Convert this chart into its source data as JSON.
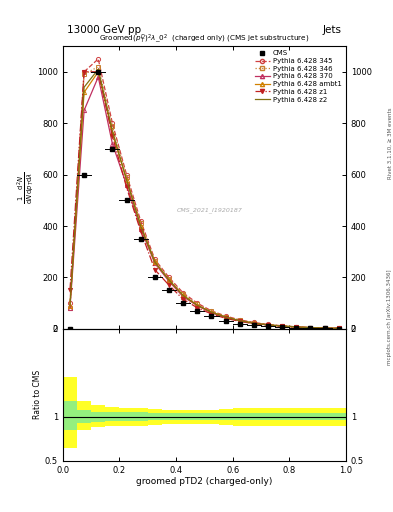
{
  "title_left": "13000 GeV pp",
  "title_right": "Jets",
  "plot_title": "Groomed$(p_T^D)^2\\lambda_0^2$  (charged only) (CMS jet substructure)",
  "xlabel": "groomed pTD2 (charged-only)",
  "ylabel_top": "1 / mathrmN d^2N / mathrmd p_T mathrmd lambda",
  "right_label_top": "Rivet 3.1.10, ≥ 3M events",
  "right_label_bottom": "mcplots.cern.ch [arXiv:1306.3436]",
  "watermark": "CMS_2021_I1920187",
  "x_bins": [
    0.0,
    0.05,
    0.1,
    0.15,
    0.2,
    0.25,
    0.3,
    0.35,
    0.4,
    0.45,
    0.5,
    0.55,
    0.6,
    0.65,
    0.7,
    0.75,
    0.8,
    0.85,
    0.9,
    0.95,
    1.0
  ],
  "cms_data": [
    0,
    600,
    1000,
    700,
    500,
    350,
    200,
    150,
    100,
    70,
    50,
    30,
    20,
    15,
    10,
    7,
    5,
    3,
    2,
    1
  ],
  "py345_data": [
    100,
    1000,
    1050,
    800,
    600,
    420,
    270,
    200,
    140,
    100,
    70,
    50,
    35,
    25,
    17,
    12,
    8,
    5,
    3,
    2
  ],
  "py346_data": [
    80,
    990,
    1020,
    790,
    590,
    410,
    265,
    195,
    135,
    95,
    68,
    48,
    33,
    23,
    16,
    11,
    7.5,
    4.8,
    3,
    1.9
  ],
  "py370_data": [
    80,
    850,
    980,
    720,
    560,
    390,
    255,
    185,
    125,
    90,
    62,
    44,
    31,
    21,
    15,
    10,
    7,
    4.5,
    2.8,
    1.8
  ],
  "pyambt1_data": [
    90,
    920,
    1000,
    760,
    580,
    400,
    260,
    190,
    130,
    92,
    65,
    46,
    32,
    22,
    15.5,
    11,
    7.5,
    4.8,
    3,
    2
  ],
  "pyz1_data": [
    150,
    1000,
    1000,
    750,
    550,
    380,
    230,
    170,
    115,
    82,
    58,
    41,
    29,
    20,
    14,
    9.5,
    6.5,
    4.2,
    2.6,
    1.7
  ],
  "pyz2_data": [
    90,
    940,
    1010,
    770,
    580,
    400,
    260,
    190,
    130,
    92,
    65,
    46,
    32,
    22,
    15.5,
    11,
    7.5,
    4.8,
    3,
    2
  ],
  "ratio_yellow_upper": [
    1.45,
    1.18,
    1.13,
    1.11,
    1.1,
    1.1,
    1.09,
    1.08,
    1.08,
    1.08,
    1.08,
    1.09,
    1.1,
    1.1,
    1.1,
    1.1,
    1.1,
    1.1,
    1.1,
    1.1
  ],
  "ratio_yellow_lower": [
    0.65,
    0.85,
    0.88,
    0.89,
    0.9,
    0.9,
    0.91,
    0.92,
    0.92,
    0.92,
    0.92,
    0.91,
    0.9,
    0.9,
    0.9,
    0.9,
    0.9,
    0.9,
    0.9,
    0.9
  ],
  "ratio_green_upper": [
    1.18,
    1.08,
    1.06,
    1.05,
    1.05,
    1.05,
    1.04,
    1.04,
    1.04,
    1.04,
    1.04,
    1.04,
    1.04,
    1.04,
    1.04,
    1.04,
    1.04,
    1.04,
    1.04,
    1.04
  ],
  "ratio_green_lower": [
    0.85,
    0.93,
    0.94,
    0.95,
    0.95,
    0.95,
    0.96,
    0.96,
    0.96,
    0.96,
    0.96,
    0.96,
    0.96,
    0.96,
    0.96,
    0.96,
    0.96,
    0.96,
    0.96,
    0.96
  ],
  "color_345": "#d04040",
  "color_346": "#c88030",
  "color_370": "#c03060",
  "color_ambt1": "#d08000",
  "color_z1": "#c02020",
  "color_z2": "#807010",
  "ylim_main": [
    0,
    1100
  ],
  "ylim_ratio": [
    0.5,
    2.0
  ],
  "xlim": [
    0.0,
    1.0
  ]
}
